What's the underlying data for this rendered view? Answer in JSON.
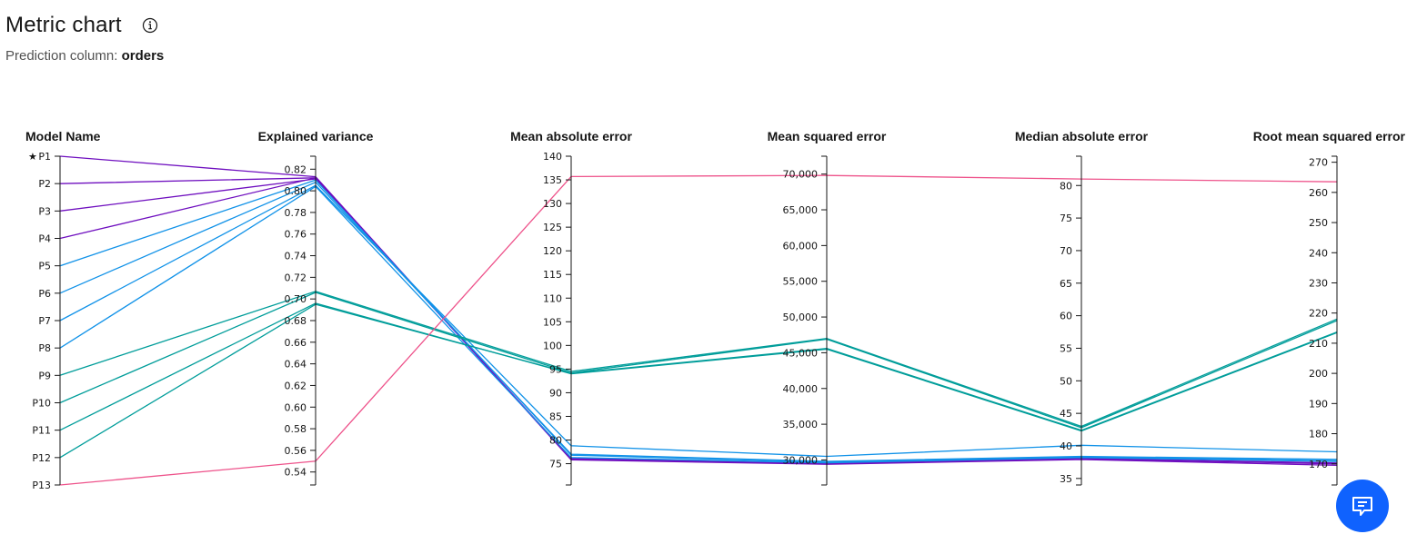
{
  "header": {
    "title": "Metric chart",
    "subtitle_label": "Prediction column:",
    "subtitle_value": "orders"
  },
  "icons": {
    "info": "info-icon",
    "chat": "chat-icon",
    "star": "star-icon"
  },
  "chart_data": {
    "type": "parallel-coordinates",
    "axes": [
      {
        "name": "Model Name",
        "categorical": true,
        "categories": [
          "P1",
          "P2",
          "P3",
          "P4",
          "P5",
          "P6",
          "P7",
          "P8",
          "P9",
          "P10",
          "P11",
          "P12",
          "P13"
        ],
        "starred": "P1"
      },
      {
        "name": "Explained variance",
        "range": [
          0.528,
          0.832
        ],
        "ticks": [
          0.54,
          0.56,
          0.58,
          0.6,
          0.62,
          0.64,
          0.66,
          0.68,
          0.7,
          0.72,
          0.74,
          0.76,
          0.78,
          0.8,
          0.82
        ],
        "decimals": 2
      },
      {
        "name": "Mean absolute error",
        "range": [
          70.5,
          140
        ],
        "ticks": [
          75,
          80,
          85,
          90,
          95,
          100,
          105,
          110,
          115,
          120,
          125,
          130,
          135,
          140
        ],
        "decimals": 0
      },
      {
        "name": "Mean squared error",
        "range": [
          26500,
          72500
        ],
        "ticks": [
          30000,
          35000,
          40000,
          45000,
          50000,
          55000,
          60000,
          65000,
          70000
        ],
        "decimals": 0,
        "thousands": true
      },
      {
        "name": "Median absolute error",
        "range": [
          34,
          84.5
        ],
        "ticks": [
          35,
          40,
          45,
          50,
          55,
          60,
          65,
          70,
          75,
          80
        ],
        "decimals": 0
      },
      {
        "name": "Root mean squared error",
        "range": [
          163,
          272
        ],
        "ticks": [
          170,
          180,
          190,
          200,
          210,
          220,
          230,
          240,
          250,
          260,
          270
        ],
        "decimals": 0
      }
    ],
    "series": [
      {
        "model": "P1",
        "color": "#6f0fbf",
        "values": [
          0.813,
          75.8,
          29400,
          37.9,
          169.5
        ]
      },
      {
        "model": "P2",
        "color": "#6f0fbf",
        "values": [
          0.812,
          76.0,
          29500,
          38.0,
          170.0
        ]
      },
      {
        "model": "P3",
        "color": "#6f0fbf",
        "values": [
          0.811,
          76.1,
          29600,
          38.1,
          170.3
        ]
      },
      {
        "model": "P4",
        "color": "#6f0fbf",
        "values": [
          0.812,
          75.9,
          29500,
          38.0,
          170.1
        ]
      },
      {
        "model": "P5",
        "color": "#1192e8",
        "values": [
          0.81,
          76.8,
          29700,
          38.3,
          171.0
        ]
      },
      {
        "model": "P6",
        "color": "#1192e8",
        "values": [
          0.808,
          77.0,
          29800,
          38.4,
          171.5
        ]
      },
      {
        "model": "P7",
        "color": "#1192e8",
        "values": [
          0.805,
          78.8,
          30500,
          40.1,
          174.0
        ]
      },
      {
        "model": "P8",
        "color": "#1192e8",
        "values": [
          0.804,
          76.3,
          29600,
          38.2,
          170.8
        ]
      },
      {
        "model": "P9",
        "color": "#009d9a",
        "values": [
          0.707,
          94.5,
          47000,
          43.0,
          218.0
        ]
      },
      {
        "model": "P10",
        "color": "#009d9a",
        "values": [
          0.706,
          94.2,
          46900,
          42.8,
          217.5
        ]
      },
      {
        "model": "P11",
        "color": "#009d9a",
        "values": [
          0.696,
          94.0,
          45500,
          42.3,
          213.5
        ]
      },
      {
        "model": "P12",
        "color": "#009d9a",
        "values": [
          0.695,
          94.1,
          45600,
          42.4,
          213.7
        ]
      },
      {
        "model": "P13",
        "color": "#ee538b",
        "values": [
          0.55,
          135.7,
          69800,
          81.0,
          263.5
        ]
      }
    ]
  }
}
